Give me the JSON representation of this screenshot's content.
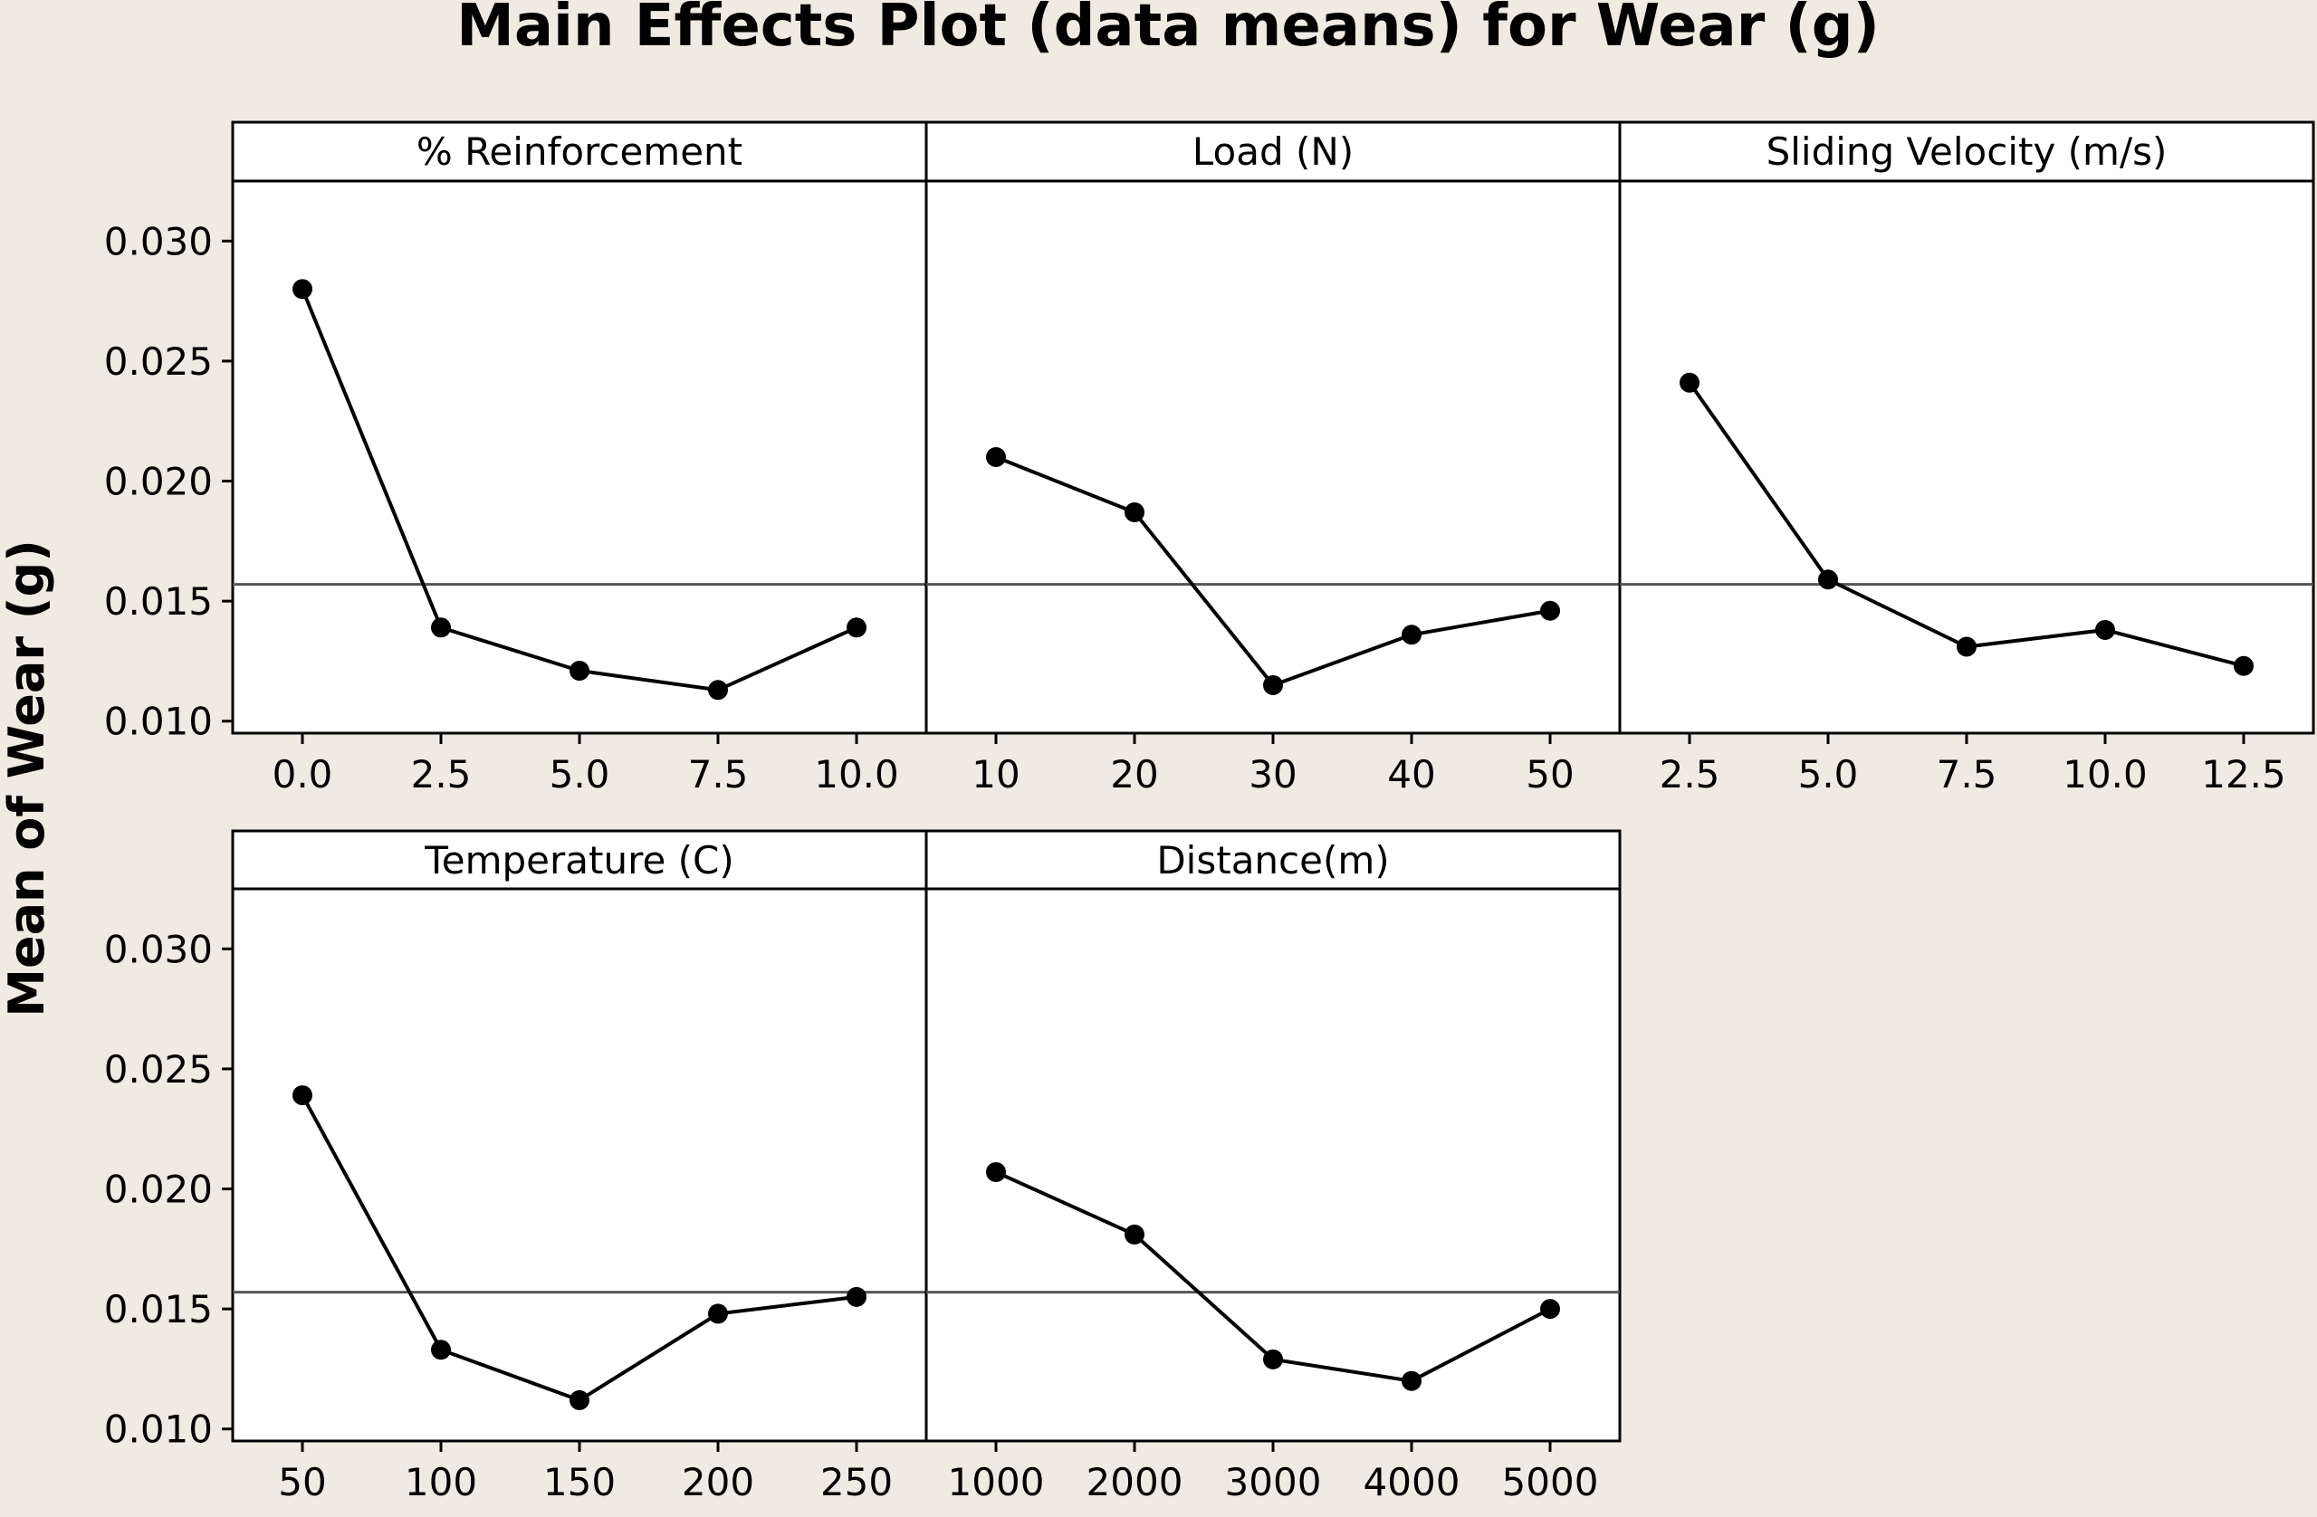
{
  "chart_data": {
    "type": "line",
    "title": "Main Effects Plot (data means) for Wear (g)",
    "ylabel": "Mean of Wear (g)",
    "ylim": [
      0.0095,
      0.0325
    ],
    "yticks": [
      "0.010",
      "0.015",
      "0.020",
      "0.025",
      "0.030"
    ],
    "yticks_values": [
      0.01,
      0.015,
      0.02,
      0.025,
      0.03
    ],
    "overall_mean": 0.0157,
    "grid": false,
    "panels": [
      {
        "label": "% Reinforcement",
        "x_labels": [
          "0.0",
          "2.5",
          "5.0",
          "7.5",
          "10.0"
        ],
        "x": [
          0.0,
          2.5,
          5.0,
          7.5,
          10.0
        ],
        "values": [
          0.028,
          0.0139,
          0.0121,
          0.0113,
          0.0139
        ]
      },
      {
        "label": "Load (N)",
        "x_labels": [
          "10",
          "20",
          "30",
          "40",
          "50"
        ],
        "x": [
          10,
          20,
          30,
          40,
          50
        ],
        "values": [
          0.021,
          0.0187,
          0.0115,
          0.0136,
          0.0146
        ]
      },
      {
        "label": "Sliding Velocity (m/s)",
        "x_labels": [
          "2.5",
          "5.0",
          "7.5",
          "10.0",
          "12.5"
        ],
        "x": [
          2.5,
          5.0,
          7.5,
          10.0,
          12.5
        ],
        "values": [
          0.0241,
          0.0159,
          0.0131,
          0.0138,
          0.0123
        ]
      },
      {
        "label": "Temperature (C)",
        "x_labels": [
          "50",
          "100",
          "150",
          "200",
          "250"
        ],
        "x": [
          50,
          100,
          150,
          200,
          250
        ],
        "values": [
          0.0239,
          0.0133,
          0.0112,
          0.0148,
          0.0155
        ]
      },
      {
        "label": "Distance(m)",
        "x_labels": [
          "1000",
          "2000",
          "3000",
          "4000",
          "5000"
        ],
        "x": [
          1000,
          2000,
          3000,
          4000,
          5000
        ],
        "values": [
          0.0207,
          0.0181,
          0.0129,
          0.012,
          0.015
        ]
      }
    ]
  },
  "colors": {
    "background": "#f0ebe2",
    "panel": "#ffffff",
    "line": "#000000",
    "mean_line": "#555555"
  }
}
